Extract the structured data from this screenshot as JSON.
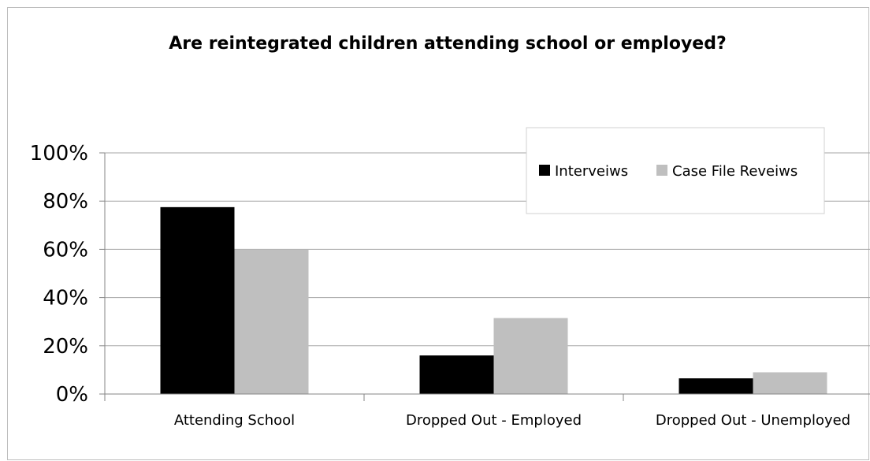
{
  "chart_data": {
    "type": "bar",
    "title": "Are reintegrated children attending school or employed?",
    "categories": [
      "Attending School",
      "Dropped Out - Employed",
      "Dropped Out - Unemployed"
    ],
    "series": [
      {
        "name": "Interveiws",
        "values": [
          77.5,
          16,
          6.5
        ],
        "color": "#000000"
      },
      {
        "name": "Case File Reveiws",
        "values": [
          60,
          31.5,
          9
        ],
        "color": "#bfbfbf"
      }
    ],
    "y_ticks": [
      "0%",
      "20%",
      "40%",
      "60%",
      "80%",
      "100%"
    ],
    "ylim": [
      0,
      100
    ],
    "grid": true,
    "legend_position": "top-right",
    "colors": {
      "gridline": "#a6a6a6",
      "axis": "#868686",
      "frame": "#bdbdbd"
    }
  }
}
